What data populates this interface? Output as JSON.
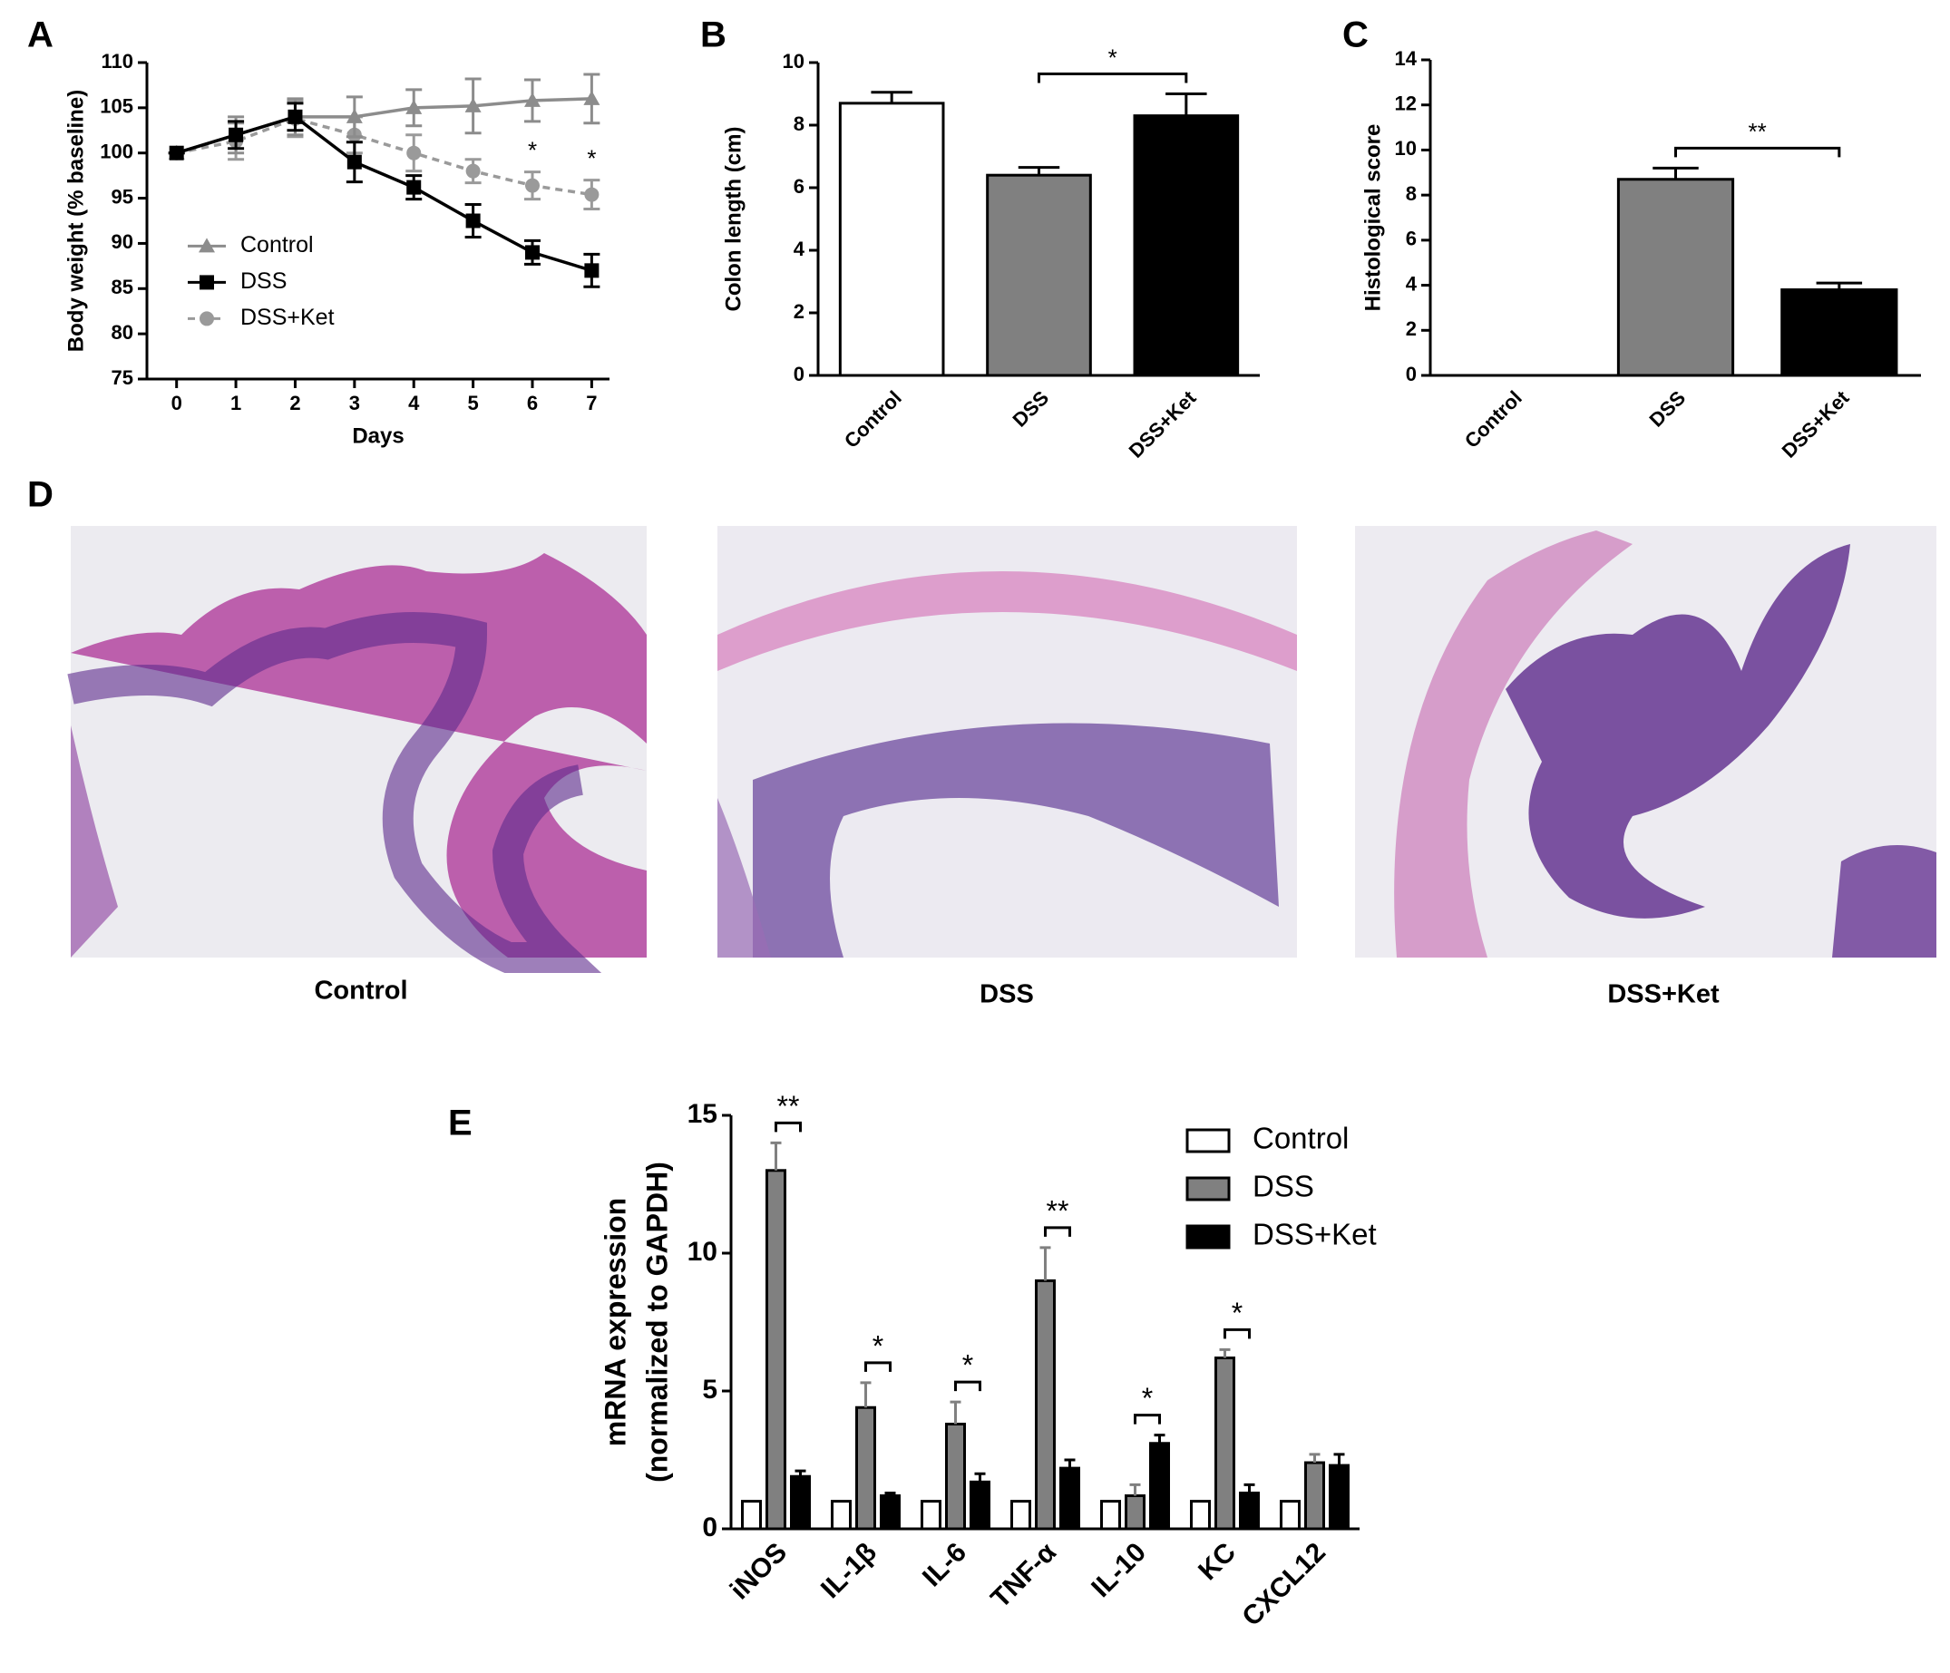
{
  "chart_data": [
    {
      "type": "line",
      "panel": "A",
      "x_label": "Days",
      "y_label": "Body weight  (% baseline)",
      "x": [
        0,
        1,
        2,
        3,
        4,
        5,
        6,
        7
      ],
      "xlim": [
        -0.5,
        7.3
      ],
      "xticks": [
        0,
        1,
        2,
        3,
        4,
        5,
        6,
        7
      ],
      "ylim": [
        75,
        110
      ],
      "yticks": [
        75,
        80,
        85,
        90,
        95,
        100,
        105,
        110
      ],
      "series": [
        {
          "name": "Control",
          "color": "#8c8c8c",
          "marker": "triangle",
          "line_style": "solid",
          "values": [
            100,
            102,
            104,
            104,
            105,
            105.2,
            105.8,
            106
          ],
          "errors": [
            0,
            2,
            2,
            2.2,
            2,
            3,
            2.3,
            2.7
          ]
        },
        {
          "name": "DSS",
          "color": "#000000",
          "marker": "square",
          "line_style": "solid",
          "values": [
            100,
            102,
            104,
            99,
            96.2,
            92.5,
            89,
            87
          ],
          "errors": [
            0,
            1.5,
            1.5,
            2.2,
            1.3,
            1.8,
            1.3,
            1.8
          ]
        },
        {
          "name": "DSS+Ket",
          "color": "#9a9a9a",
          "marker": "circle",
          "line_style": "dashed",
          "values": [
            100,
            101.3,
            103.8,
            102,
            100,
            98,
            96.4,
            95.4
          ],
          "errors": [
            0,
            2,
            2,
            2,
            2,
            1.3,
            1.5,
            1.6
          ]
        }
      ],
      "significance": [
        null,
        null,
        null,
        null,
        null,
        null,
        "*",
        "*"
      ],
      "legend": "lower-left"
    },
    {
      "type": "bar",
      "panel": "B",
      "y_label": "Colon length (cm)",
      "categories": [
        "Control",
        "DSS",
        "DSS+Ket"
      ],
      "values": [
        8.7,
        6.4,
        8.3
      ],
      "errors": [
        0.35,
        0.25,
        0.7
      ],
      "colors": [
        "#ffffff",
        "#808080",
        "#000000"
      ],
      "ylim": [
        0,
        10
      ],
      "yticks": [
        0,
        2,
        4,
        6,
        8,
        10
      ],
      "significance": [
        {
          "between": [
            "DSS",
            "DSS+Ket"
          ],
          "label": "*"
        }
      ]
    },
    {
      "type": "bar",
      "panel": "C",
      "y_label": "Histological score",
      "categories": [
        "Control",
        "DSS",
        "DSS+Ket"
      ],
      "values": [
        0,
        8.7,
        3.8
      ],
      "errors": [
        0,
        0.5,
        0.3
      ],
      "colors": [
        "#ffffff",
        "#808080",
        "#000000"
      ],
      "ylim": [
        0,
        14
      ],
      "yticks": [
        0,
        2,
        4,
        6,
        8,
        10,
        12,
        14
      ],
      "significance": [
        {
          "between": [
            "DSS",
            "DSS+Ket"
          ],
          "label": "**"
        }
      ]
    },
    {
      "type": "bar",
      "panel": "E",
      "y_label": [
        "mRNA expression",
        "(normalized to GAPDH)"
      ],
      "categories": [
        "iNOS",
        "IL-1β",
        "IL-6",
        "TNF-α",
        "IL-10",
        "KC",
        "CXCL12"
      ],
      "series": [
        {
          "name": "Control",
          "color": "#ffffff",
          "values": [
            1,
            1,
            1,
            1,
            1,
            1,
            1
          ]
        },
        {
          "name": "DSS",
          "color": "#808080",
          "values": [
            13,
            4.4,
            3.8,
            9,
            1.2,
            6.2,
            2.4
          ],
          "errors": [
            1,
            0.9,
            0.8,
            1.2,
            0.4,
            0.3,
            0.3
          ]
        },
        {
          "name": "DSS+Ket",
          "color": "#000000",
          "values": [
            1.9,
            1.2,
            1.7,
            2.2,
            3.1,
            1.3,
            2.3
          ],
          "errors": [
            0.2,
            0.1,
            0.3,
            0.3,
            0.3,
            0.3,
            0.4
          ]
        }
      ],
      "ylim": [
        0,
        15
      ],
      "yticks": [
        0,
        5,
        10,
        15
      ],
      "significance": [
        "**",
        "*",
        "*",
        "**",
        "*",
        "*",
        null
      ],
      "legend": "upper-right"
    }
  ],
  "panel_d": {
    "label": "D",
    "captions": [
      "Control",
      "DSS",
      "DSS+Ket"
    ]
  }
}
